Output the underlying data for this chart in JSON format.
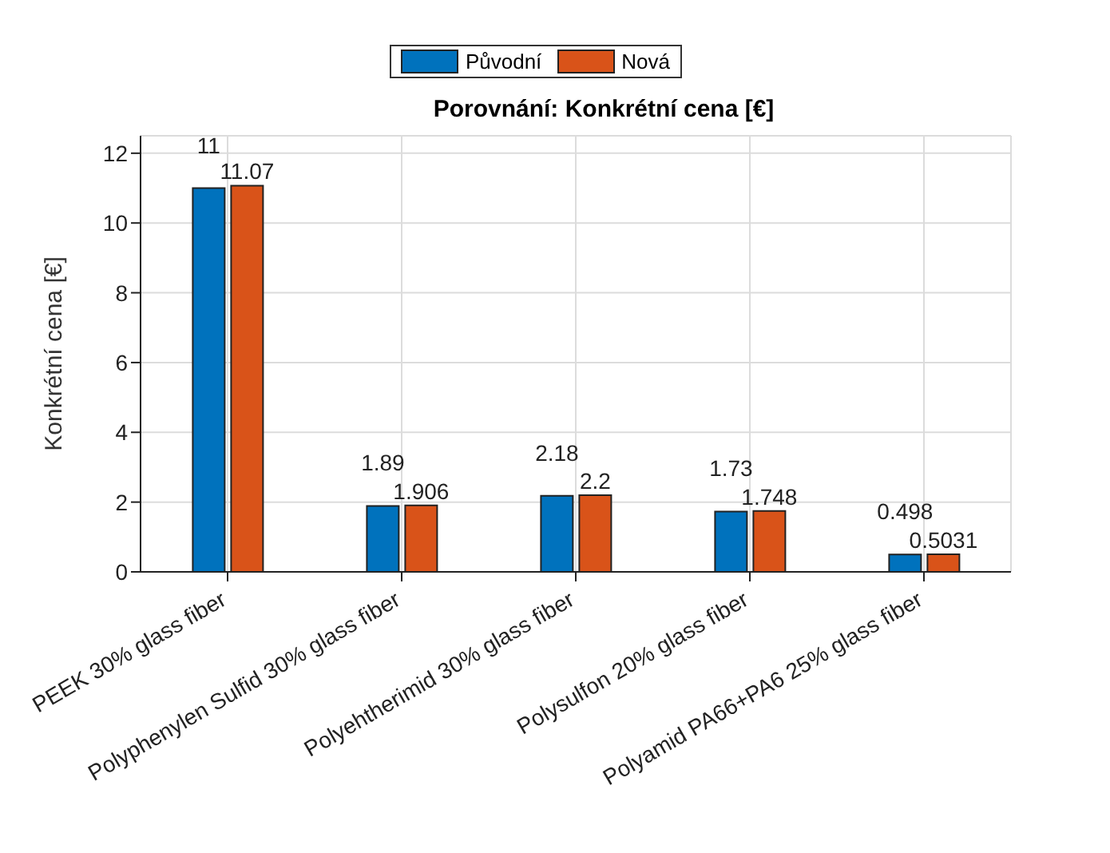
{
  "chart_data": {
    "type": "bar",
    "title": "Porovnání: Konkrétní cena [€]",
    "ylabel": "Konkrétní cena [€]",
    "categories": [
      "PEEK 30% glass fiber",
      "Polyphenylen Sulfid 30% glass fiber",
      "Polyehtherimid 30% glass fiber",
      "Polysulfon 20% glass fiber",
      "Polyamid PA66+PA6 25% glass fiber"
    ],
    "series": [
      {
        "name": "Původní",
        "color": "#0072bd",
        "values": [
          11,
          1.89,
          2.18,
          1.73,
          0.498
        ]
      },
      {
        "name": "Nová",
        "color": "#d95319",
        "values": [
          11.07,
          1.906,
          2.2,
          1.748,
          0.5031
        ]
      }
    ],
    "ylim": [
      0,
      12.5
    ],
    "yticks": [
      0,
      2,
      4,
      6,
      8,
      10,
      12
    ],
    "grid": true,
    "legend": "top",
    "data_labels": true
  }
}
